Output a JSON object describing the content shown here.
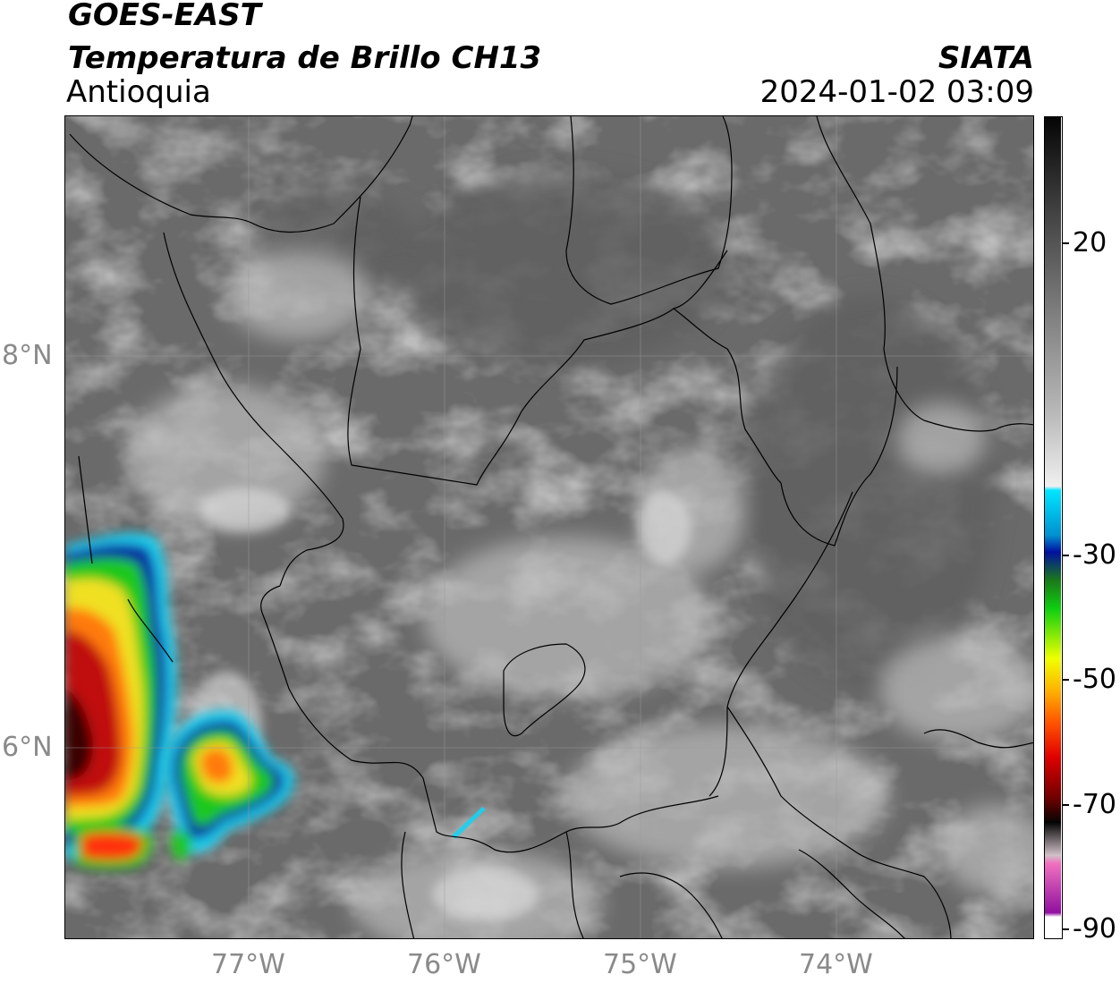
{
  "header": {
    "satellite": "GOES-EAST",
    "product": "Temperatura de Brillo CH13",
    "region": "Antioquia",
    "agency": "SIATA",
    "datetime": "2024-01-02 03:09"
  },
  "map": {
    "lat_labels": [
      "8°N",
      "6°N"
    ],
    "lon_labels": [
      "77°W",
      "76°W",
      "75°W",
      "74°W"
    ]
  },
  "colorbar": {
    "tick_labels": [
      "20",
      "-30",
      "-50",
      "-70",
      "-90"
    ]
  },
  "colors": {
    "land_gray": "#6a6a6a",
    "cloud_light": "#d8d8d8",
    "cold_red": "#b00000",
    "cold_yellow": "#ffe000",
    "cold_green": "#10c010",
    "cold_blue": "#0030c0",
    "cold_cyan": "#00e0ff"
  }
}
